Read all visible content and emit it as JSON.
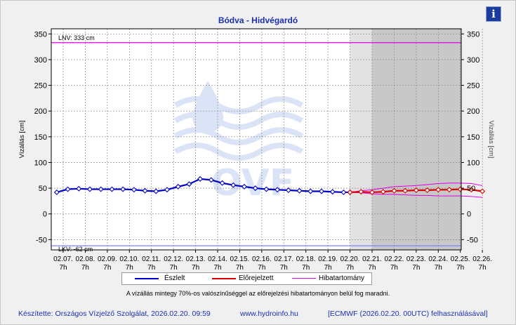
{
  "title": "Bódva - Hidvégardó",
  "info_label": "i",
  "legend": {
    "observed": "Észlelt",
    "forecast": "Előrejelzett",
    "error_band": "Hibatartomány"
  },
  "note": "A vízállás mintegy 70%-os valószínűséggel az előrejelzési hibatartományon belül fog maradni.",
  "footer": {
    "left": "Készítette: Országos Vízjelző Szolgálat, 2026.02.20. 09:59",
    "center": "www.hydroinfo.hu",
    "right": "[ECMWF (2026.02.20. 00UTC) felhasználásával]"
  },
  "watermark": "OVF",
  "colors": {
    "observed": "#0000c8",
    "forecast": "#d80000",
    "error_band": "#e000e0",
    "lnv": "#e000e0",
    "lkv": "#8080ff",
    "title": "#1b2fb0",
    "forecast_shade": "#c8c8c8"
  },
  "chart_data": {
    "type": "line",
    "ylabel_left": "Vízállás [cm]",
    "ylabel_right": "Vízállás [cm]",
    "ylim": [
      -70,
      360
    ],
    "yticks": [
      -50,
      0,
      50,
      100,
      150,
      200,
      250,
      300,
      350
    ],
    "grid": true,
    "x_ticks": [
      {
        "date": "02.07.",
        "time": "7h"
      },
      {
        "date": "02.08.",
        "time": "7h"
      },
      {
        "date": "02.09.",
        "time": "7h"
      },
      {
        "date": "02.10.",
        "time": "7h"
      },
      {
        "date": "02.11.",
        "time": "7h"
      },
      {
        "date": "02.12.",
        "time": "7h"
      },
      {
        "date": "02.13.",
        "time": "7h"
      },
      {
        "date": "02.14.",
        "time": "7h"
      },
      {
        "date": "02.15.",
        "time": "7h"
      },
      {
        "date": "02.16.",
        "time": "7h"
      },
      {
        "date": "02.17.",
        "time": "7h"
      },
      {
        "date": "02.18.",
        "time": "7h"
      },
      {
        "date": "02.19.",
        "time": "7h"
      },
      {
        "date": "02.20.",
        "time": "7h"
      },
      {
        "date": "02.21.",
        "time": "7h"
      },
      {
        "date": "02.22.",
        "time": "7h"
      },
      {
        "date": "02.23.",
        "time": "7h"
      },
      {
        "date": "02.24.",
        "time": "7h"
      },
      {
        "date": "02.25.",
        "time": "7h"
      },
      {
        "date": "02.26.",
        "time": "7h"
      }
    ],
    "reference_lines": [
      {
        "label": "LNV: 333 cm",
        "value": 333
      },
      {
        "label": "LKV: -62 cm",
        "value": -62
      }
    ],
    "series": [
      {
        "name": "Észlelt",
        "x": [
          "02.07. 00h",
          "02.07. 12h",
          "02.08. 00h",
          "02.08. 12h",
          "02.09. 00h",
          "02.09. 12h",
          "02.10. 00h",
          "02.10. 12h",
          "02.11. 00h",
          "02.11. 12h",
          "02.12. 00h",
          "02.12. 12h",
          "02.13. 00h",
          "02.13. 12h",
          "02.14. 00h",
          "02.14. 12h",
          "02.15. 00h",
          "02.15. 12h",
          "02.16. 00h",
          "02.16. 12h",
          "02.17. 00h",
          "02.17. 12h",
          "02.18. 00h",
          "02.18. 12h",
          "02.19. 00h",
          "02.19. 12h",
          "02.20. 00h",
          "02.20. 07h"
        ],
        "values": [
          42,
          48,
          49,
          48,
          48,
          48,
          48,
          47,
          45,
          44,
          47,
          53,
          58,
          68,
          66,
          60,
          56,
          53,
          50,
          48,
          47,
          46,
          45,
          44,
          44,
          43,
          42,
          42
        ]
      },
      {
        "name": "Előrejelzett",
        "x": [
          "02.20. 07h",
          "02.20. 19h",
          "02.21. 07h",
          "02.21. 19h",
          "02.22. 07h",
          "02.22. 19h",
          "02.23. 07h",
          "02.23. 19h",
          "02.24. 07h",
          "02.24. 19h",
          "02.25. 07h",
          "02.25. 19h",
          "02.26. 07h"
        ],
        "values": [
          42,
          43,
          42,
          43,
          45,
          45,
          46,
          46,
          47,
          47,
          48,
          47,
          44
        ]
      },
      {
        "name": "Hibatartomány",
        "x": [
          "02.20. 07h",
          "02.20. 19h",
          "02.21. 07h",
          "02.21. 19h",
          "02.22. 07h",
          "02.22. 19h",
          "02.23. 07h",
          "02.23. 19h",
          "02.24. 07h",
          "02.24. 19h",
          "02.25. 07h",
          "02.25. 19h",
          "02.26. 07h"
        ],
        "upper": [
          42,
          45,
          47,
          50,
          53,
          54,
          55,
          57,
          59,
          60,
          60,
          59,
          55
        ],
        "lower": [
          42,
          41,
          39,
          38,
          38,
          37,
          36,
          36,
          35,
          35,
          35,
          34,
          32
        ]
      }
    ]
  }
}
